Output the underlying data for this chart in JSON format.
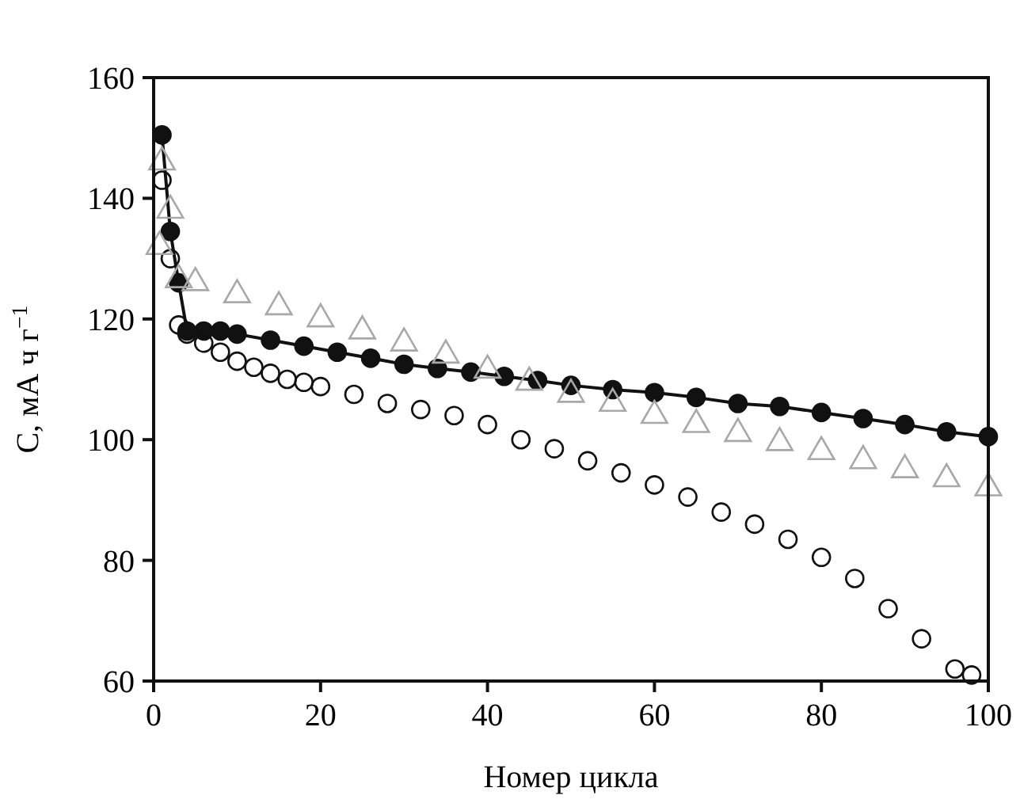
{
  "chart_data": {
    "type": "scatter",
    "xlabel": "Номер цикла",
    "ylabel": "C, мА ч г$^{−1}$",
    "xlim": [
      0,
      100
    ],
    "ylim": [
      60,
      160
    ],
    "xticks": [
      0,
      20,
      40,
      60,
      80,
      100
    ],
    "yticks": [
      60,
      80,
      100,
      120,
      140,
      160
    ],
    "grid": false,
    "series": [
      {
        "type": "line",
        "color": "#111111",
        "marker": "circle",
        "x": [
          1,
          2,
          3,
          4,
          6,
          8,
          10,
          14,
          18,
          22,
          26,
          30,
          34,
          38,
          42,
          46,
          50,
          55,
          60,
          65,
          70,
          75,
          80,
          85,
          90,
          95,
          100
        ],
        "values": [
          150.5,
          134.5,
          126,
          118,
          118,
          118,
          117.5,
          116.5,
          115.5,
          114.5,
          113.5,
          112.5,
          111.8,
          111.2,
          110.5,
          109.8,
          109,
          108.3,
          107.8,
          107,
          106,
          105.5,
          104.5,
          103.5,
          102.5,
          101.3,
          100.5
        ]
      },
      {
        "color": "#111111",
        "marker": "circle",
        "x": [
          1,
          2,
          3,
          4,
          6,
          8,
          10,
          12,
          14,
          16,
          18,
          20,
          24,
          28,
          32,
          36,
          40,
          44,
          48,
          52,
          56,
          60,
          64,
          68,
          72,
          76,
          80,
          84,
          88,
          92,
          96,
          98
        ],
        "values": [
          143,
          130,
          119,
          117.5,
          116,
          114.5,
          113,
          112,
          111,
          110,
          109.5,
          108.8,
          107.5,
          106,
          105,
          104,
          102.5,
          100,
          98.5,
          96.5,
          94.5,
          92.5,
          90.5,
          88,
          86,
          83.5,
          80.5,
          77,
          72,
          67,
          62,
          61
        ]
      },
      {
        "color": "#a8a8a8",
        "marker": "triangle",
        "x": [
          0.7,
          1,
          2,
          3,
          5,
          10,
          15,
          20,
          25,
          30,
          35,
          40,
          45,
          50,
          55,
          60,
          65,
          70,
          75,
          80,
          85,
          90,
          95,
          100
        ],
        "values": [
          132,
          146,
          138,
          126.5,
          126,
          124,
          122,
          120,
          118,
          116,
          114,
          111.5,
          109.5,
          107.5,
          106,
          104,
          102.5,
          101,
          99.5,
          98,
          96.5,
          95,
          93.5,
          92
        ]
      }
    ]
  }
}
